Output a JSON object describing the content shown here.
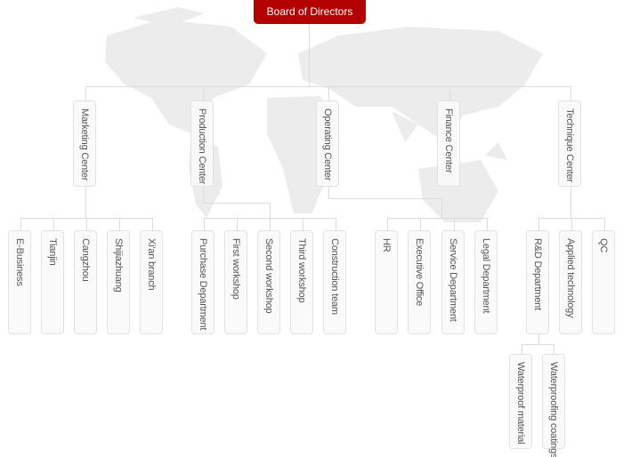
{
  "root": {
    "label": "Board of Directors",
    "color": "#b30000"
  },
  "centers": [
    {
      "label": "Marketing Center",
      "children": [
        "E-Business",
        "Tianjin",
        "Cangzhou",
        "Shijiazhuang",
        "Xi'an branch"
      ]
    },
    {
      "label": "Production Center",
      "children": [
        "Purchase Department",
        "First workshop",
        "Second workshop",
        "Third workshop",
        "Construction team"
      ]
    },
    {
      "label": "Operating Center",
      "children": [
        "HR",
        "Executive Office",
        "Service Department",
        "Legal Department"
      ]
    },
    {
      "label": "Finance Center",
      "children": []
    },
    {
      "label": "Technique Center",
      "children": [
        "R&D Department",
        "Applied technology",
        "QC"
      ]
    }
  ],
  "rd_children": [
    "Waterproof material",
    "Waterproofing coatings"
  ]
}
